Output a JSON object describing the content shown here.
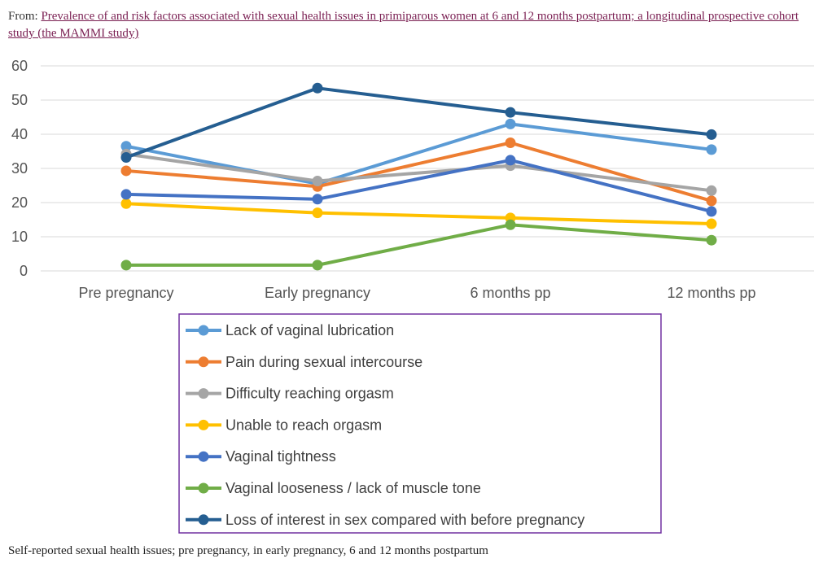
{
  "source": {
    "prefix": "From: ",
    "link_text": "Prevalence of and risk factors associated with sexual health issues in primiparous women at 6 and 12 months postpartum; a longitudinal prospective cohort study (the MAMMI study)"
  },
  "caption": "Self-reported sexual health issues; pre pregnancy, in early pregnancy, 6 and 12 months postpartum",
  "chart_data": {
    "type": "line",
    "categories": [
      "Pre pregnancy",
      "Early pregnancy",
      "6 months pp",
      "12 months pp"
    ],
    "ylim": [
      0,
      60
    ],
    "yticks": [
      0,
      10,
      20,
      30,
      40,
      50,
      60
    ],
    "grid": true,
    "legend_position": "bottom",
    "series": [
      {
        "name": "Lack of vaginal lubrication",
        "color": "#5B9BD5",
        "values": [
          36.5,
          25.5,
          43,
          35.5
        ]
      },
      {
        "name": "Pain during sexual intercourse",
        "color": "#ED7D31",
        "values": [
          29.3,
          24.7,
          37.5,
          20.5
        ]
      },
      {
        "name": "Difficulty reaching orgasm",
        "color": "#A5A5A5",
        "values": [
          34.2,
          26.3,
          30.8,
          23.5
        ]
      },
      {
        "name": "Unable to reach orgasm",
        "color": "#FFC000",
        "values": [
          19.7,
          17,
          15.5,
          13.8
        ]
      },
      {
        "name": "Vaginal tightness",
        "color": "#4472C4",
        "values": [
          22.4,
          21,
          32.4,
          17.4
        ]
      },
      {
        "name": "Vaginal looseness / lack of muscle tone",
        "color": "#70AD47",
        "values": [
          1.7,
          1.7,
          13.5,
          9
        ]
      },
      {
        "name": "Loss of interest in sex compared with before pregnancy",
        "color": "#255E91",
        "values": [
          33.2,
          53.5,
          46.4,
          39.9
        ]
      }
    ]
  }
}
